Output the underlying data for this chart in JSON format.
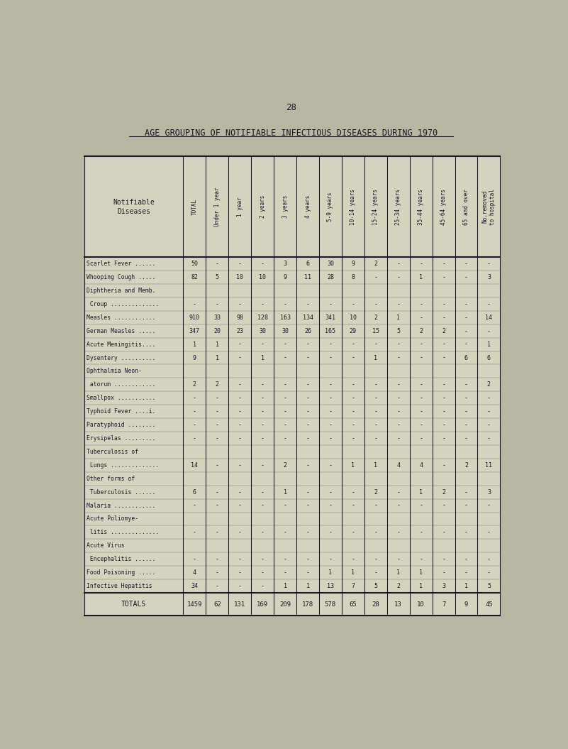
{
  "page_number": "28",
  "title": "AGE GROUPING OF NOTIFIABLE INFECTIOUS DISEASES DURING 1970",
  "background_color": "#b8b7a2",
  "table_bg": "#d4d3be",
  "text_color": "#1a1a2e",
  "col_headers": [
    "TOTAL",
    "Under 1 year",
    "1 year",
    "2 years",
    "3 years",
    "4 years",
    "5-9 years",
    "10-14 years",
    "15-24 years",
    "25-34 years",
    "35-44 years",
    "45-64 years",
    "65 and over",
    "No.removed\nto hospital"
  ],
  "row_labels": [
    "Scarlet Fever ......",
    "Whooping Cough .....",
    "Diphtheria and Memb.",
    " Croup ..............",
    "Measles ............",
    "German Measles .....",
    "Acute Meningitis....",
    "Dysentery ..........",
    "Ophthalmia Neon-",
    " atorum ............",
    "Smallpox ...........",
    "Typhoid Fever ....i.",
    "Paratyphoid ........",
    "Erysipelas .........",
    "Tuberculosis of",
    " Lungs ..............",
    "Other forms of",
    " Tuberculosis ......",
    "Malaria ............",
    "Acute Poliomye-",
    " litis ..............",
    "Acute Virus",
    " Encephalitis ......",
    "Food Poisoning .....",
    "Infective Hepatitis"
  ],
  "table_data": [
    [
      "50",
      "-",
      "-",
      "-",
      "3",
      "6",
      "30",
      "9",
      "2",
      "-",
      "-",
      "-",
      "-",
      "-"
    ],
    [
      "82",
      "5",
      "10",
      "10",
      "9",
      "11",
      "28",
      "8",
      "-",
      "-",
      "1",
      "-",
      "-",
      "3"
    ],
    [
      "",
      "",
      "",
      "",
      "",
      "",
      "",
      "",
      "",
      "",
      "",
      "",
      "",
      ""
    ],
    [
      "-",
      "-",
      "-",
      "-",
      "-",
      "-",
      "-",
      "-",
      "-",
      "-",
      "-",
      "-",
      "-",
      "-"
    ],
    [
      "910",
      "33",
      "98",
      "128",
      "163",
      "134",
      "341",
      "10",
      "2",
      "1",
      "-",
      "-",
      "-",
      "14"
    ],
    [
      "347",
      "20",
      "23",
      "30",
      "30",
      "26",
      "165",
      "29",
      "15",
      "5",
      "2",
      "2",
      "-",
      "-"
    ],
    [
      "1",
      "1",
      "-",
      "-",
      "-",
      "-",
      "-",
      "-",
      "-",
      "-",
      "-",
      "-",
      "-",
      "1"
    ],
    [
      "9",
      "1",
      "-",
      "1",
      "-",
      "-",
      "-",
      "-",
      "1",
      "-",
      "-",
      "-",
      "6",
      "6"
    ],
    [
      "",
      "",
      "",
      "",
      "",
      "",
      "",
      "",
      "",
      "",
      "",
      "",
      "",
      ""
    ],
    [
      "2",
      "2",
      "-",
      "-",
      "-",
      "-",
      "-",
      "-",
      "-",
      "-",
      "-",
      "-",
      "-",
      "2"
    ],
    [
      "-",
      "-",
      "-",
      "-",
      "-",
      "-",
      "-",
      "-",
      "-",
      "-",
      "-",
      "-",
      "-",
      "-"
    ],
    [
      "-",
      "-",
      "-",
      "-",
      "-",
      "-",
      "-",
      "-",
      "-",
      "-",
      "-",
      "-",
      "-",
      "-"
    ],
    [
      "-",
      "-",
      "-",
      "-",
      "-",
      "-",
      "-",
      "-",
      "-",
      "-",
      "-",
      "-",
      "-",
      "-"
    ],
    [
      "-",
      "-",
      "-",
      "-",
      "-",
      "-",
      "-",
      "-",
      "-",
      "-",
      "-",
      "-",
      "-",
      "-"
    ],
    [
      "",
      "",
      "",
      "",
      "",
      "",
      "",
      "",
      "",
      "",
      "",
      "",
      "",
      ""
    ],
    [
      "14",
      "-",
      "-",
      "-",
      "2",
      "-",
      "-",
      "1",
      "1",
      "4",
      "4",
      "-",
      "2",
      "11"
    ],
    [
      "",
      "",
      "",
      "",
      "",
      "",
      "",
      "",
      "",
      "",
      "",
      "",
      "",
      ""
    ],
    [
      "6",
      "-",
      "-",
      "-",
      "1",
      "-",
      "-",
      "-",
      "2",
      "-",
      "1",
      "2",
      "-",
      "3"
    ],
    [
      "-",
      "-",
      "-",
      "-",
      "-",
      "-",
      "-",
      "-",
      "-",
      "-",
      "-",
      "-",
      "-",
      "-"
    ],
    [
      "",
      "",
      "",
      "",
      "",
      "",
      "",
      "",
      "",
      "",
      "",
      "",
      "",
      ""
    ],
    [
      "-",
      "-",
      "-",
      "-",
      "-",
      "-",
      "-",
      "-",
      "-",
      "-",
      "-",
      "-",
      "-",
      "-"
    ],
    [
      "",
      "",
      "",
      "",
      "",
      "",
      "",
      "",
      "",
      "",
      "",
      "",
      "",
      ""
    ],
    [
      "-",
      "-",
      "-",
      "-",
      "-",
      "-",
      "-",
      "-",
      "-",
      "-",
      "-",
      "-",
      "-",
      "-"
    ],
    [
      "4",
      "-",
      "-",
      "-",
      "-",
      "-",
      "1",
      "1",
      "-",
      "1",
      "1",
      "-",
      "-",
      "-"
    ],
    [
      "34",
      "-",
      "-",
      "-",
      "1",
      "1",
      "13",
      "7",
      "5",
      "2",
      "1",
      "3",
      "1",
      "5"
    ]
  ],
  "totals_label": "TOTALS",
  "totals_data": [
    "1459",
    "62",
    "131",
    "169",
    "209",
    "178",
    "578",
    "65",
    "28",
    "13",
    "10",
    "7",
    "9",
    "45"
  ]
}
